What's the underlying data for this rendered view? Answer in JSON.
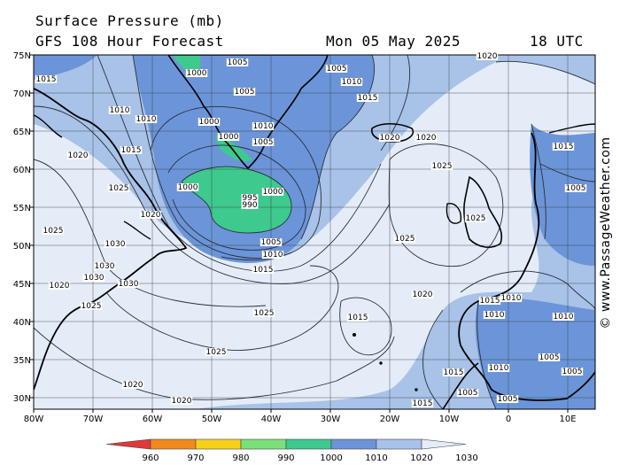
{
  "title": "Surface Pressure (mb)",
  "subtitle": "GFS 108 Hour Forecast",
  "date": "Mon 05 May 2025",
  "time": "18 UTC",
  "credit": "© www.PassageWeather.com",
  "lat_labels": [
    "75N",
    "70N",
    "65N",
    "60N",
    "55N",
    "50N",
    "45N",
    "40N",
    "35N",
    "30N"
  ],
  "lon_labels": [
    "80W",
    "70W",
    "60W",
    "50W",
    "40W",
    "30W",
    "20W",
    "10W",
    "0",
    "10E"
  ],
  "legend_labels": [
    "960",
    "970",
    "980",
    "990",
    "1000",
    "1010",
    "1020",
    "1030"
  ],
  "legend_colors": [
    "#e0383c",
    "#f08a1e",
    "#f5d21a",
    "#7be07a",
    "#3ec98e",
    "#6b95d8",
    "#a8c2e8",
    "#e4ecf8"
  ],
  "contour_labels": [
    {
      "text": "1015"
    },
    {
      "text": "1010"
    },
    {
      "text": "1010"
    },
    {
      "text": "1020"
    },
    {
      "text": "1015"
    },
    {
      "text": "1025"
    },
    {
      "text": "1020"
    },
    {
      "text": "1025"
    },
    {
      "text": "1030"
    },
    {
      "text": "1030"
    },
    {
      "text": "1030"
    },
    {
      "text": "1030"
    },
    {
      "text": "1020"
    },
    {
      "text": "1025"
    },
    {
      "text": "1020"
    },
    {
      "text": "1020"
    },
    {
      "text": "1025"
    },
    {
      "text": "1025"
    },
    {
      "text": "1015"
    },
    {
      "text": "1010"
    },
    {
      "text": "1005"
    },
    {
      "text": "1000"
    },
    {
      "text": "995"
    },
    {
      "text": "990"
    },
    {
      "text": "1000"
    },
    {
      "text": "1000"
    },
    {
      "text": "1005"
    },
    {
      "text": "1010"
    },
    {
      "text": "1005"
    },
    {
      "text": "1005"
    },
    {
      "text": "1005"
    },
    {
      "text": "1010"
    },
    {
      "text": "1015"
    },
    {
      "text": "1020"
    },
    {
      "text": "1020"
    },
    {
      "text": "1025"
    },
    {
      "text": "1025"
    },
    {
      "text": "1025"
    },
    {
      "text": "1020"
    },
    {
      "text": "1020"
    },
    {
      "text": "1015"
    },
    {
      "text": "1015"
    },
    {
      "text": "1010"
    },
    {
      "text": "1015"
    },
    {
      "text": "1010"
    },
    {
      "text": "1005"
    },
    {
      "text": "1010"
    },
    {
      "text": "1005"
    },
    {
      "text": "1010"
    },
    {
      "text": "1005"
    },
    {
      "text": "1015"
    },
    {
      "text": "1015"
    },
    {
      "text": "1005"
    },
    {
      "text": "1005"
    },
    {
      "text": "1000"
    },
    {
      "text": "1000"
    }
  ]
}
